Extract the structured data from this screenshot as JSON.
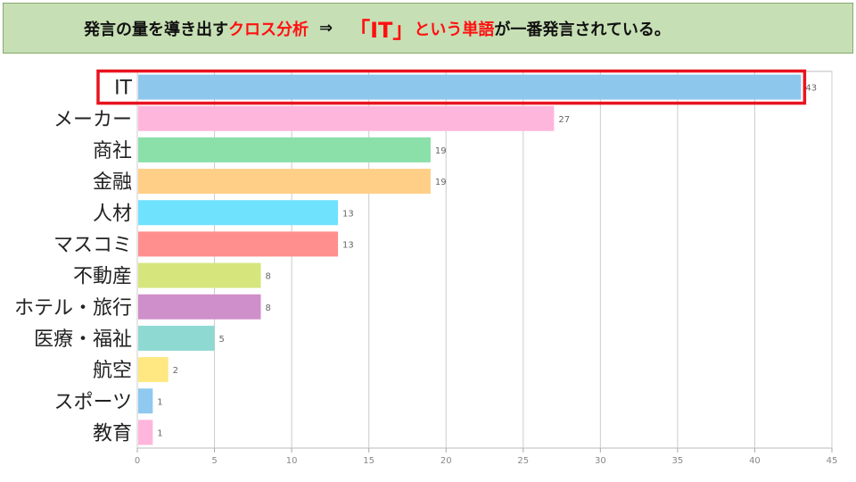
{
  "header": {
    "part1": "発言の量を導き出す",
    "part2": "クロス分析",
    "arrow": "⇒",
    "part3": "「IT」",
    "part4": "という単語",
    "part5": "が一番発言されている。"
  },
  "colors": {
    "highlight": "#e8141e",
    "grid": "#cccccc"
  },
  "chart_data": {
    "type": "bar",
    "orientation": "horizontal",
    "categories": [
      "IT",
      "メーカー",
      "商社",
      "金融",
      "人材",
      "マスコミ",
      "不動産",
      "ホテル・旅行",
      "医療・福祉",
      "航空",
      "スポーツ",
      "教育"
    ],
    "values": [
      43,
      27,
      19,
      19,
      13,
      13,
      8,
      8,
      5,
      2,
      1,
      1
    ],
    "bar_colors": [
      "#8ec7ec",
      "#ffb6dc",
      "#8be0aa",
      "#ffcf88",
      "#6fe2fe",
      "#ff8f8f",
      "#d6e67c",
      "#cf8fca",
      "#8ed9d2",
      "#ffe781",
      "#8fc9ef",
      "#ffb6dc"
    ],
    "xlim": [
      0,
      45
    ],
    "xticks": [
      0,
      5,
      10,
      15,
      20,
      25,
      30,
      35,
      40,
      45
    ],
    "grid": true,
    "highlighted_category": "IT"
  }
}
